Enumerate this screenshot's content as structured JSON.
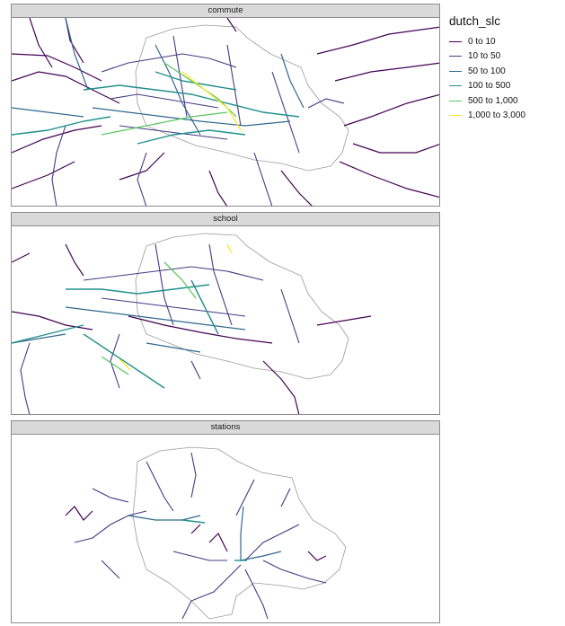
{
  "legend": {
    "title": "dutch_slc",
    "items": [
      {
        "label": "0 to 10",
        "color": "#440154"
      },
      {
        "label": "10 to 50",
        "color": "#443A83"
      },
      {
        "label": "50 to 100",
        "color": "#31688E"
      },
      {
        "label": "100 to 500",
        "color": "#21908C"
      },
      {
        "label": "500 to 1,000",
        "color": "#5DC863"
      },
      {
        "label": "1,000 to 3,000",
        "color": "#FDE725"
      }
    ]
  },
  "facets": [
    {
      "label": "commute"
    },
    {
      "label": "school"
    },
    {
      "label": "stations"
    }
  ]
}
